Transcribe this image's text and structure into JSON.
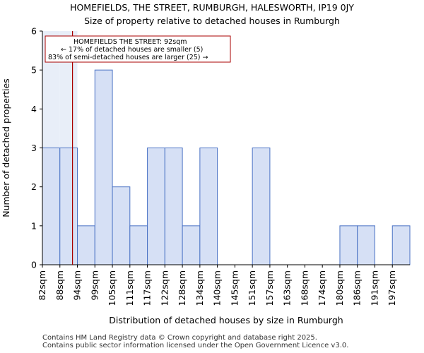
{
  "chart_data": {
    "type": "histogram",
    "title": "HOMEFIELDS, THE STREET, RUMBURGH, HALESWORTH, IP19 0JY",
    "subtitle": "Size of property relative to detached houses in Rumburgh",
    "xlabel": "Distribution of detached houses by size in Rumburgh",
    "ylabel": "Number of detached properties",
    "categories": [
      "82sqm",
      "88sqm",
      "94sqm",
      "99sqm",
      "105sqm",
      "111sqm",
      "117sqm",
      "122sqm",
      "128sqm",
      "134sqm",
      "140sqm",
      "145sqm",
      "151sqm",
      "157sqm",
      "163sqm",
      "168sqm",
      "174sqm",
      "180sqm",
      "186sqm",
      "191sqm",
      "197sqm"
    ],
    "values": [
      3,
      3,
      1,
      5,
      2,
      1,
      3,
      3,
      1,
      3,
      0,
      0,
      3,
      0,
      0,
      0,
      0,
      1,
      1,
      0,
      1
    ],
    "yticks": [
      0,
      1,
      2,
      3,
      4,
      5,
      6
    ],
    "ylim": [
      0,
      6
    ],
    "marker": {
      "value_sqm": 92,
      "bin_position": 1.72,
      "color": "#aa0000"
    },
    "annotation": {
      "lines": [
        "HOMEFIELDS THE STREET: 92sqm",
        "← 17% of detached houses are smaller (5)",
        "83% of semi-detached houses are larger (25) →"
      ]
    },
    "colors": {
      "bar_fill": "#d6e0f5",
      "bar_edge": "#4a72c4",
      "highlight_fill": "#e8eef8",
      "axis": "#000000"
    }
  },
  "footer": {
    "line1": "Contains HM Land Registry data © Crown copyright and database right 2025.",
    "line2": "Contains public sector information licensed under the Open Government Licence v3.0."
  }
}
